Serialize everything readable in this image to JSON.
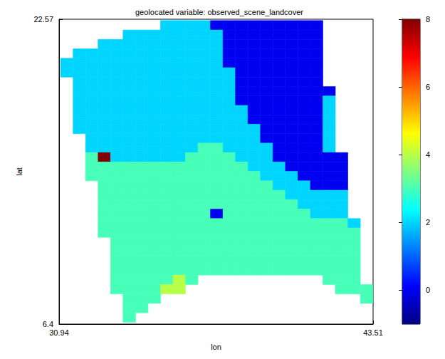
{
  "chart_data": {
    "type": "heatmap",
    "title": "geolocated variable: observed_scene_landcover",
    "x_label": "lon",
    "y_label": "lat",
    "xlim": [
      30.94,
      43.51
    ],
    "ylim": [
      6.4,
      22.57
    ],
    "xticks": [
      30.94,
      43.51
    ],
    "yticks": [
      6.4,
      22.57
    ],
    "x": [
      31.25,
      31.75,
      32.25,
      32.75,
      33.25,
      33.75,
      34.25,
      34.75,
      35.25,
      35.75,
      36.25,
      36.75,
      37.25,
      37.75,
      38.25,
      38.75,
      39.25,
      39.75,
      40.25,
      40.75,
      41.25,
      41.75,
      42.25,
      42.75,
      43.25
    ],
    "y": [
      22.25,
      21.75,
      21.25,
      20.75,
      20.25,
      19.75,
      19.25,
      18.75,
      18.25,
      17.75,
      17.25,
      16.75,
      16.25,
      15.75,
      15.25,
      14.75,
      14.25,
      13.75,
      13.25,
      12.75,
      12.25,
      11.75,
      11.25,
      10.75,
      10.25,
      9.75,
      9.25,
      8.75,
      8.25,
      7.75,
      7.25,
      6.75
    ],
    "cells": [
      [
        null,
        null,
        null,
        null,
        null,
        null,
        null,
        null,
        2,
        2,
        2,
        2,
        0,
        0,
        0,
        0,
        0,
        0,
        0,
        0,
        0,
        null,
        null,
        null,
        null
      ],
      [
        null,
        null,
        null,
        null,
        null,
        2,
        2,
        2,
        2,
        2,
        2,
        2,
        2,
        0,
        0,
        0,
        0,
        0,
        0,
        0,
        0,
        null,
        null,
        null,
        null
      ],
      [
        null,
        null,
        null,
        2,
        2,
        2,
        2,
        2,
        2,
        2,
        2,
        2,
        2,
        0,
        0,
        0,
        0,
        0,
        0,
        0,
        0,
        null,
        null,
        null,
        null
      ],
      [
        null,
        2,
        2,
        2,
        2,
        2,
        2,
        2,
        2,
        2,
        2,
        2,
        2,
        0,
        0,
        0,
        0,
        0,
        0,
        0,
        0,
        null,
        null,
        null,
        null
      ],
      [
        2,
        2,
        2,
        2,
        2,
        2,
        2,
        2,
        2,
        2,
        2,
        2,
        2,
        0,
        0,
        0,
        0,
        0,
        0,
        0,
        0,
        null,
        null,
        null,
        null
      ],
      [
        2,
        2,
        2,
        2,
        2,
        2,
        2,
        2,
        2,
        2,
        2,
        2,
        2,
        2,
        0,
        0,
        0,
        0,
        0,
        0,
        0,
        null,
        null,
        null,
        null
      ],
      [
        null,
        2,
        2,
        2,
        2,
        2,
        2,
        2,
        2,
        2,
        2,
        2,
        2,
        2,
        0,
        0,
        0,
        0,
        0,
        0,
        0,
        null,
        null,
        null,
        null
      ],
      [
        null,
        2,
        2,
        2,
        2,
        2,
        2,
        2,
        2,
        2,
        2,
        2,
        2,
        2,
        0,
        0,
        0,
        0,
        0,
        0,
        0,
        0,
        null,
        null,
        null
      ],
      [
        null,
        2,
        2,
        2,
        2,
        2,
        2,
        2,
        2,
        2,
        2,
        2,
        2,
        2,
        0,
        0,
        0,
        0,
        0,
        0,
        0,
        2,
        null,
        null,
        null
      ],
      [
        null,
        2,
        2,
        2,
        2,
        2,
        2,
        2,
        2,
        2,
        2,
        2,
        2,
        2,
        2,
        0,
        0,
        0,
        0,
        0,
        0,
        2,
        null,
        null,
        null
      ],
      [
        null,
        2,
        2,
        2,
        2,
        2,
        2,
        2,
        2,
        2,
        2,
        2,
        2,
        2,
        2,
        0,
        0,
        0,
        0,
        0,
        0,
        2,
        null,
        null,
        null
      ],
      [
        null,
        2,
        2,
        2,
        2,
        2,
        2,
        2,
        2,
        2,
        2,
        2,
        2,
        2,
        2,
        2,
        0,
        0,
        0,
        0,
        0,
        2,
        null,
        null,
        null
      ],
      [
        null,
        null,
        2,
        2,
        2,
        2,
        2,
        2,
        2,
        2,
        2,
        2,
        2,
        2,
        2,
        2,
        0,
        0,
        0,
        0,
        0,
        2,
        null,
        null,
        null
      ],
      [
        null,
        null,
        2,
        2,
        2,
        2,
        2,
        2,
        2,
        2,
        2,
        3,
        3,
        2,
        2,
        2,
        2,
        0,
        0,
        0,
        0,
        2,
        null,
        null,
        null
      ],
      [
        null,
        null,
        3,
        8,
        2,
        2,
        2,
        2,
        2,
        2,
        3,
        3,
        3,
        3,
        2,
        2,
        2,
        0,
        0,
        0,
        0,
        0,
        0,
        null,
        null
      ],
      [
        null,
        null,
        3,
        3,
        3,
        3,
        3,
        3,
        3,
        3,
        3,
        3,
        3,
        3,
        3,
        2,
        2,
        2,
        0,
        0,
        0,
        0,
        0,
        null,
        null
      ],
      [
        null,
        null,
        3,
        3,
        3,
        3,
        3,
        3,
        3,
        3,
        3,
        3,
        3,
        3,
        3,
        3,
        2,
        2,
        2,
        0,
        0,
        0,
        0,
        null,
        null
      ],
      [
        null,
        null,
        null,
        3,
        3,
        3,
        3,
        3,
        3,
        3,
        3,
        3,
        3,
        3,
        3,
        3,
        3,
        2,
        2,
        2,
        0,
        0,
        0,
        null,
        null
      ],
      [
        null,
        null,
        null,
        3,
        3,
        3,
        3,
        3,
        3,
        3,
        3,
        3,
        3,
        3,
        3,
        3,
        3,
        3,
        2,
        2,
        2,
        2,
        2,
        null,
        null
      ],
      [
        null,
        null,
        null,
        3,
        3,
        3,
        3,
        3,
        3,
        3,
        3,
        3,
        3,
        3,
        3,
        3,
        3,
        3,
        3,
        2,
        2,
        2,
        2,
        null,
        null
      ],
      [
        null,
        null,
        null,
        3,
        3,
        3,
        3,
        3,
        3,
        3,
        3,
        3,
        0,
        3,
        3,
        3,
        3,
        3,
        3,
        3,
        2,
        2,
        2,
        null,
        null
      ],
      [
        null,
        null,
        null,
        3,
        3,
        3,
        3,
        3,
        3,
        3,
        3,
        3,
        3,
        3,
        3,
        3,
        3,
        3,
        3,
        3,
        3,
        3,
        3,
        2,
        null
      ],
      [
        null,
        null,
        null,
        3,
        3,
        3,
        3,
        3,
        3,
        3,
        3,
        3,
        3,
        3,
        3,
        3,
        3,
        3,
        3,
        3,
        3,
        3,
        3,
        3,
        null
      ],
      [
        null,
        null,
        null,
        null,
        3,
        3,
        3,
        3,
        3,
        3,
        3,
        3,
        3,
        3,
        3,
        3,
        3,
        3,
        3,
        3,
        3,
        3,
        3,
        3,
        null
      ],
      [
        null,
        null,
        null,
        null,
        3,
        3,
        3,
        3,
        3,
        3,
        3,
        3,
        3,
        3,
        3,
        3,
        3,
        3,
        3,
        3,
        3,
        3,
        3,
        3,
        null
      ],
      [
        null,
        null,
        null,
        null,
        3,
        3,
        3,
        3,
        3,
        3,
        3,
        3,
        3,
        3,
        3,
        3,
        3,
        3,
        3,
        3,
        3,
        3,
        3,
        3,
        null
      ],
      [
        null,
        null,
        null,
        null,
        3,
        3,
        3,
        3,
        3,
        3,
        3,
        3,
        3,
        3,
        3,
        3,
        3,
        3,
        3,
        3,
        3,
        3,
        3,
        3,
        null
      ],
      [
        null,
        null,
        null,
        null,
        3,
        3,
        3,
        3,
        3,
        4,
        3,
        null,
        null,
        null,
        null,
        null,
        null,
        null,
        null,
        null,
        null,
        3,
        3,
        3,
        null
      ],
      [
        null,
        null,
        null,
        null,
        3,
        3,
        3,
        3,
        4,
        4,
        null,
        null,
        null,
        null,
        null,
        null,
        null,
        null,
        null,
        null,
        null,
        null,
        3,
        3,
        3
      ],
      [
        null,
        null,
        null,
        null,
        null,
        3,
        3,
        3,
        null,
        null,
        null,
        null,
        null,
        null,
        null,
        null,
        null,
        null,
        null,
        null,
        null,
        null,
        null,
        null,
        3
      ],
      [
        null,
        null,
        null,
        null,
        null,
        3,
        3,
        null,
        null,
        null,
        null,
        null,
        null,
        null,
        null,
        null,
        null,
        null,
        null,
        null,
        null,
        null,
        null,
        null,
        null
      ],
      [
        null,
        null,
        null,
        null,
        null,
        3,
        null,
        null,
        null,
        null,
        null,
        null,
        null,
        null,
        null,
        null,
        null,
        null,
        null,
        null,
        null,
        null,
        null,
        null,
        null
      ]
    ],
    "colorbar": {
      "range": [
        -1,
        8
      ],
      "ticks": [
        0,
        2,
        4,
        6,
        8
      ]
    }
  }
}
